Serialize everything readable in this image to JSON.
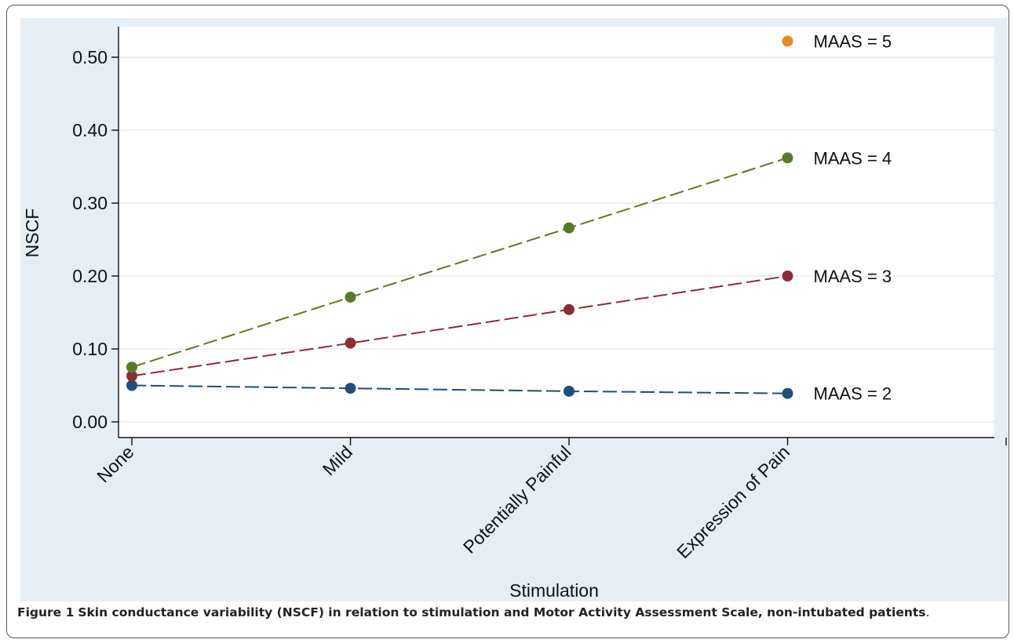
{
  "caption": {
    "label": "Figure 1",
    "text": "Skin conductance variability (NSCF) in relation to stimulation and Motor Activity Assessment Scale, non-intubated patients",
    "end": "."
  },
  "chart_data": {
    "type": "line",
    "xlabel": "Stimulation",
    "ylabel": "NSCF",
    "categories": [
      "None",
      "Mild",
      "Potentially Painful",
      "Expression of Pain"
    ],
    "ylim": [
      0,
      0.55
    ],
    "yticks": [
      "0.00",
      "0.10",
      "0.20",
      "0.30",
      "0.40",
      "0.50"
    ],
    "grid": true,
    "legend": "labels at right end of each line",
    "series": [
      {
        "name": "MAAS = 2",
        "color": "#1f4e79",
        "values": [
          0.05,
          0.046,
          0.042,
          0.039
        ]
      },
      {
        "name": "MAAS = 3",
        "color": "#8b2e34",
        "values": [
          0.063,
          0.108,
          0.154,
          0.2
        ]
      },
      {
        "name": "MAAS = 4",
        "color": "#5a7a2a",
        "values": [
          0.075,
          0.171,
          0.266,
          0.362
        ]
      },
      {
        "name": "MAAS = 5",
        "color": "#e8871e",
        "values": [
          null,
          null,
          null,
          0.522
        ]
      }
    ]
  }
}
